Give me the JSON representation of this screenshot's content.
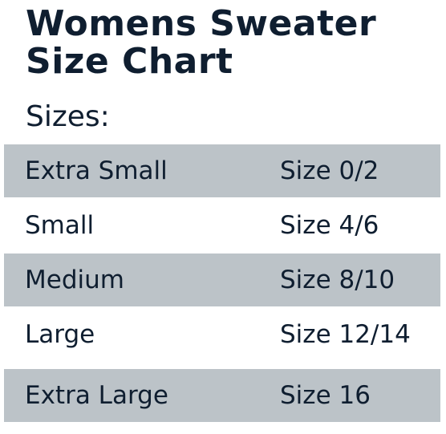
{
  "header": {
    "title": "Womens Sweater Size Chart",
    "subtitle": "Sizes:"
  },
  "table": {
    "rows": [
      [
        "Extra Small",
        "Size 0/2"
      ],
      [
        "Small",
        "Size 4/6"
      ],
      [
        "Medium",
        "Size 8/10"
      ],
      [
        "Large",
        "Size 12/14"
      ],
      [
        "Extra Large",
        "Size 16"
      ]
    ]
  }
}
